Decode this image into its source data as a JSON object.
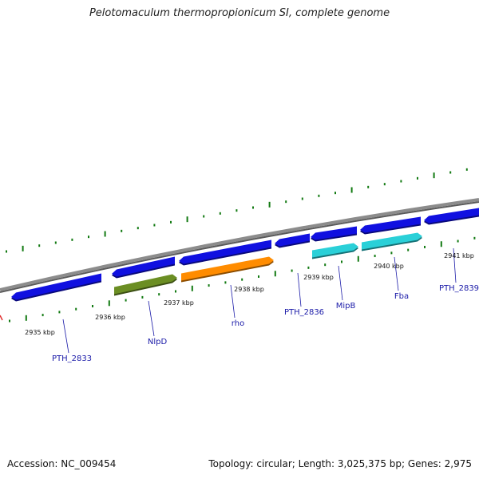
{
  "title": "Pelotomaculum thermopropionicum SI, complete genome",
  "footer": {
    "accession": "Accession: NC_009454",
    "summary": "Topology: circular; Length: 3,025,375 bp; Genes: 2,975"
  },
  "colors": {
    "backbone": "#8c8c8c",
    "tick": "#127a12",
    "blue": "#1010e0",
    "olive": "#6b8e23",
    "orange": "#ff8c00",
    "cyan": "#2ad0d8",
    "label": "#1a1aa8"
  },
  "kbp_labels": [
    {
      "text": "2935 kbp"
    },
    {
      "text": "2936 kbp"
    },
    {
      "text": "2937 kbp"
    },
    {
      "text": "2938 kbp"
    },
    {
      "text": "2939 kbp"
    },
    {
      "text": "2940 kbp"
    },
    {
      "text": "2941 kbp"
    }
  ],
  "genes": [
    {
      "name": "PTH_2833",
      "color": "blue"
    },
    {
      "name": "",
      "color": "blue"
    },
    {
      "name": "NlpD",
      "color": "olive"
    },
    {
      "name": "",
      "color": "blue"
    },
    {
      "name": "rho",
      "color": "orange"
    },
    {
      "name": "PTH_2836",
      "color": "blue"
    },
    {
      "name": "",
      "color": "blue"
    },
    {
      "name": "MipB",
      "color": "cyan"
    },
    {
      "name": "",
      "color": "blue"
    },
    {
      "name": "Fba",
      "color": "cyan"
    },
    {
      "name": "PTH_2839",
      "color": "blue"
    }
  ]
}
